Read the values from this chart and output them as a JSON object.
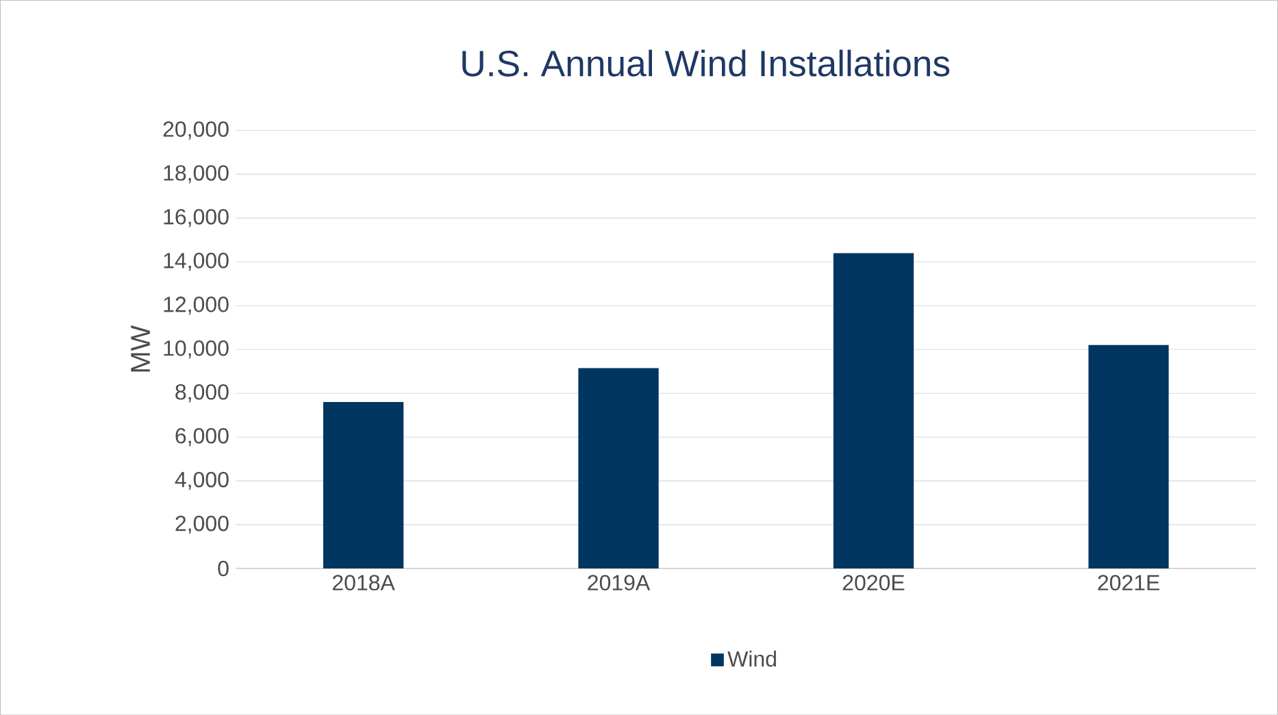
{
  "chart_data": {
    "type": "bar",
    "title": "U.S. Annual Wind Installations",
    "ylabel": "MW",
    "categories": [
      "2018A",
      "2019A",
      "2020E",
      "2021E"
    ],
    "series": [
      {
        "name": "Wind",
        "color": "#003660",
        "values": [
          7600,
          9150,
          14400,
          10200
        ]
      }
    ],
    "ylim": [
      0,
      20000
    ],
    "yticks": [
      {
        "value": 0,
        "label": "0"
      },
      {
        "value": 2000,
        "label": "2,000"
      },
      {
        "value": 4000,
        "label": "4,000"
      },
      {
        "value": 6000,
        "label": "6,000"
      },
      {
        "value": 8000,
        "label": "8,000"
      },
      {
        "value": 10000,
        "label": "10,000"
      },
      {
        "value": 12000,
        "label": "12,000"
      },
      {
        "value": 14000,
        "label": "14,000"
      },
      {
        "value": 16000,
        "label": "16,000"
      },
      {
        "value": 18000,
        "label": "18,000"
      },
      {
        "value": 20000,
        "label": "20,000"
      }
    ],
    "grid": "y",
    "legend": "bottom"
  }
}
